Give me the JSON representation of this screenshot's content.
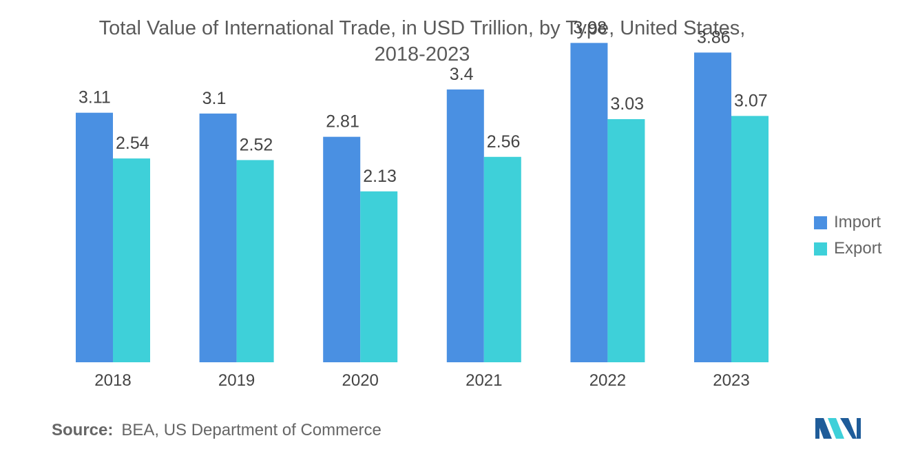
{
  "chart_data": {
    "type": "bar",
    "title_lines": [
      "Total Value of International Trade, in USD Trillion, by Type, United States,",
      "2018-2023"
    ],
    "categories": [
      "2018",
      "2019",
      "2020",
      "2021",
      "2022",
      "2023"
    ],
    "series": [
      {
        "name": "Import",
        "values": [
          3.11,
          3.1,
          2.81,
          3.4,
          3.98,
          3.86
        ],
        "labels": [
          "3.11",
          "3.1",
          "2.81",
          "3.4",
          "3.98",
          "3.86"
        ],
        "color": "#4a90e2"
      },
      {
        "name": "Export",
        "values": [
          2.54,
          2.52,
          2.13,
          2.56,
          3.03,
          3.07
        ],
        "labels": [
          "2.54",
          "2.52",
          "2.13",
          "2.56",
          "3.03",
          "3.07"
        ],
        "color": "#3ed0d9"
      }
    ],
    "xlabel": "",
    "ylabel": "",
    "ylim": [
      0,
      4
    ],
    "grid": false,
    "legend_position": "right"
  },
  "source": {
    "key": "Source:",
    "value": "BEA, US Department of Commerce"
  },
  "logo": {
    "icon": "mordor-intelligence-logo",
    "colors": [
      "#1f5c99",
      "#3ed0d9"
    ]
  }
}
